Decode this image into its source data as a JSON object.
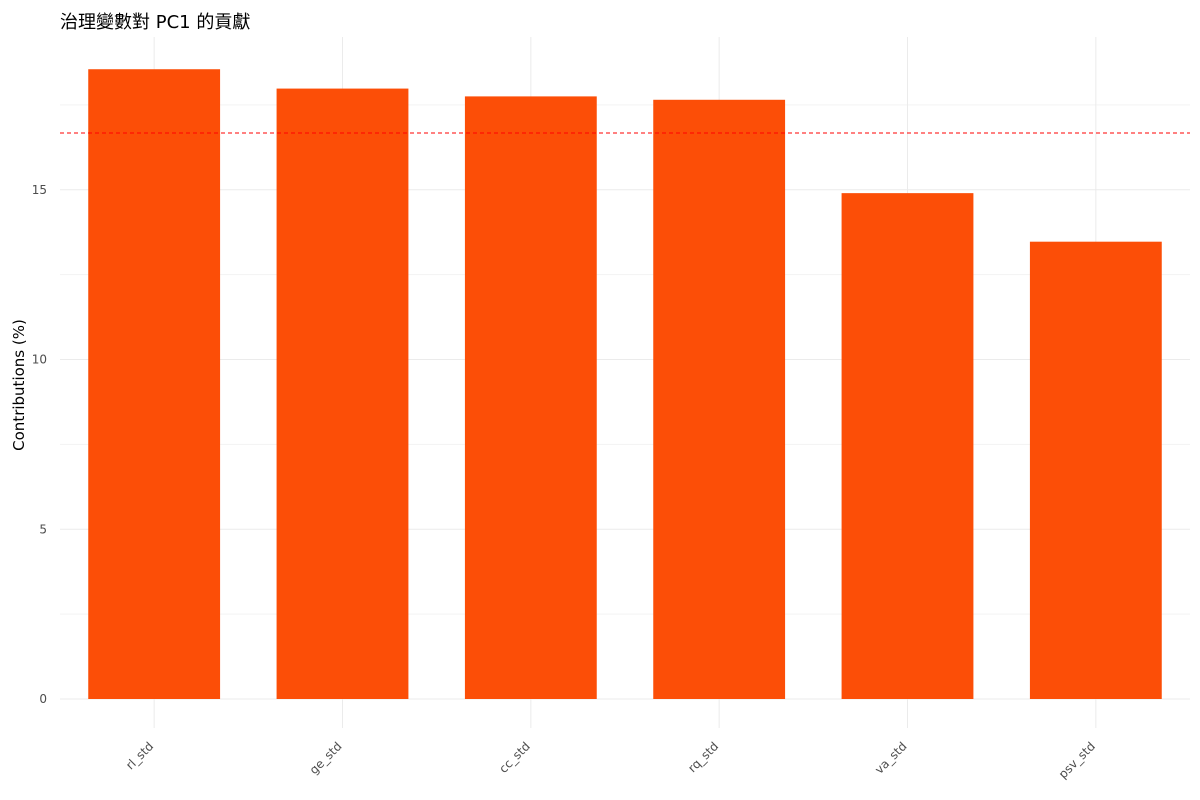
{
  "chart_data": {
    "type": "bar",
    "title": "治理變數對 PC1 的貢獻",
    "xlabel": "",
    "ylabel": "Contributions (%)",
    "categories": [
      "rl_std",
      "ge_std",
      "cc_std",
      "rq_std",
      "va_std",
      "psv_std"
    ],
    "values": [
      18.55,
      17.98,
      17.75,
      17.65,
      14.9,
      13.47
    ],
    "ylim": [
      0,
      19.5
    ],
    "yticks": [
      0,
      5,
      10,
      15
    ],
    "reference_line": {
      "value": 16.67,
      "style": "dashed",
      "color": "#ff0000"
    },
    "grid": true,
    "legend": "none",
    "colors": {
      "bar": "#fc4e07"
    }
  }
}
